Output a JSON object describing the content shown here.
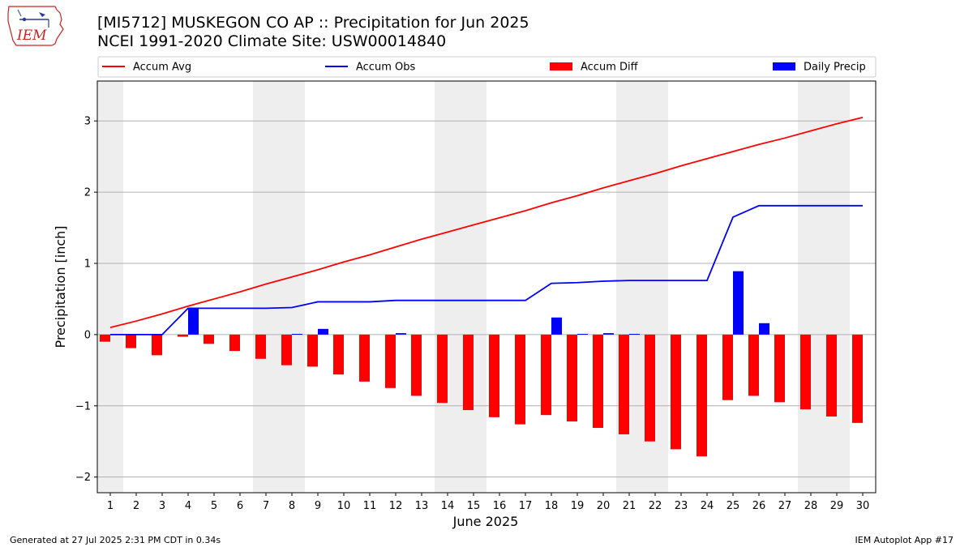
{
  "header": {
    "title_line1": "[MI5712] MUSKEGON CO AP :: Precipitation for Jun 2025",
    "title_line2": "NCEI 1991-2020 Climate Site: USW00014840"
  },
  "logo": {
    "text": "IEM",
    "icon": "iowa-state-outline-icon",
    "color": "#cc2222"
  },
  "footer": {
    "left": "Generated at 27 Jul 2025 2:31 PM CDT in 0.34s",
    "right": "IEM Autoplot App #17"
  },
  "chart_data": {
    "type": "bar",
    "xlabel": "June 2025",
    "ylabel": "Precipitation [inch]",
    "ylim": [
      -2.22,
      3.56
    ],
    "yticks": [
      -2,
      -1,
      0,
      1,
      2,
      3
    ],
    "grid": "horizontal",
    "legend": "top",
    "weekend_shading": [
      1,
      7,
      8,
      14,
      15,
      21,
      22,
      28,
      29
    ],
    "categories": [
      "1",
      "2",
      "3",
      "4",
      "5",
      "6",
      "7",
      "8",
      "9",
      "10",
      "11",
      "12",
      "13",
      "14",
      "15",
      "16",
      "17",
      "18",
      "19",
      "20",
      "21",
      "22",
      "23",
      "24",
      "25",
      "26",
      "27",
      "28",
      "29",
      "30"
    ],
    "series": [
      {
        "name": "Accum Avg",
        "kind": "line",
        "color": "#ff0000",
        "values": [
          0.1,
          0.19,
          0.29,
          0.4,
          0.5,
          0.6,
          0.71,
          0.81,
          0.91,
          1.02,
          1.12,
          1.23,
          1.34,
          1.44,
          1.54,
          1.64,
          1.74,
          1.85,
          1.95,
          2.06,
          2.16,
          2.26,
          2.37,
          2.47,
          2.57,
          2.67,
          2.76,
          2.86,
          2.96,
          3.05
        ]
      },
      {
        "name": "Accum Obs",
        "kind": "line",
        "color": "#0000ff",
        "values": [
          0.0,
          0.0,
          0.0,
          0.37,
          0.37,
          0.37,
          0.37,
          0.38,
          0.46,
          0.46,
          0.46,
          0.48,
          0.48,
          0.48,
          0.48,
          0.48,
          0.48,
          0.72,
          0.73,
          0.75,
          0.76,
          0.76,
          0.76,
          0.76,
          1.65,
          1.81,
          1.81,
          1.81,
          1.81,
          1.81
        ]
      },
      {
        "name": "Accum Diff",
        "kind": "bar",
        "color": "#ff0000",
        "values": [
          -0.1,
          -0.19,
          -0.29,
          -0.03,
          -0.13,
          -0.23,
          -0.34,
          -0.43,
          -0.45,
          -0.56,
          -0.66,
          -0.75,
          -0.86,
          -0.96,
          -1.06,
          -1.16,
          -1.26,
          -1.13,
          -1.22,
          -1.31,
          -1.4,
          -1.5,
          -1.61,
          -1.71,
          -0.92,
          -0.86,
          -0.95,
          -1.05,
          -1.15,
          -1.24
        ]
      },
      {
        "name": "Daily Precip",
        "kind": "bar",
        "color": "#0000ff",
        "values": [
          0,
          0,
          0,
          0.37,
          0,
          0,
          0,
          0.01,
          0.08,
          0,
          0,
          0.02,
          0,
          0,
          0,
          0,
          0,
          0.24,
          0.01,
          0.02,
          0.01,
          0,
          0,
          0,
          0.89,
          0.16,
          0,
          0,
          0,
          0
        ]
      }
    ]
  }
}
